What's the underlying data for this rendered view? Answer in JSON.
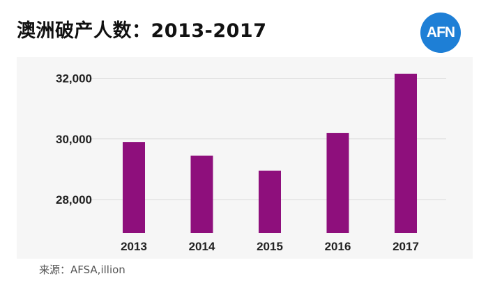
{
  "title": "澳洲破产人数：2013-2017",
  "logo": {
    "text": "AFN",
    "color": "#1e7fd6"
  },
  "source": "来源：AFSA,illion",
  "colors": {
    "bar": "#8e0f7c",
    "grid": "#d9d9d9",
    "axis_text": "#222222"
  },
  "chart_data": {
    "type": "bar",
    "title": "澳洲破产人数：2013-2017",
    "xlabel": "",
    "ylabel": "",
    "categories": [
      "2013",
      "2014",
      "2015",
      "2016",
      "2017"
    ],
    "values": [
      29900,
      29450,
      28950,
      30200,
      32150
    ],
    "ylim": [
      26900,
      32700
    ],
    "yticks": [
      28000,
      30000,
      32000
    ],
    "ytick_labels": [
      "28,000",
      "30,000",
      "32,000"
    ],
    "grid": true,
    "legend": "none"
  }
}
